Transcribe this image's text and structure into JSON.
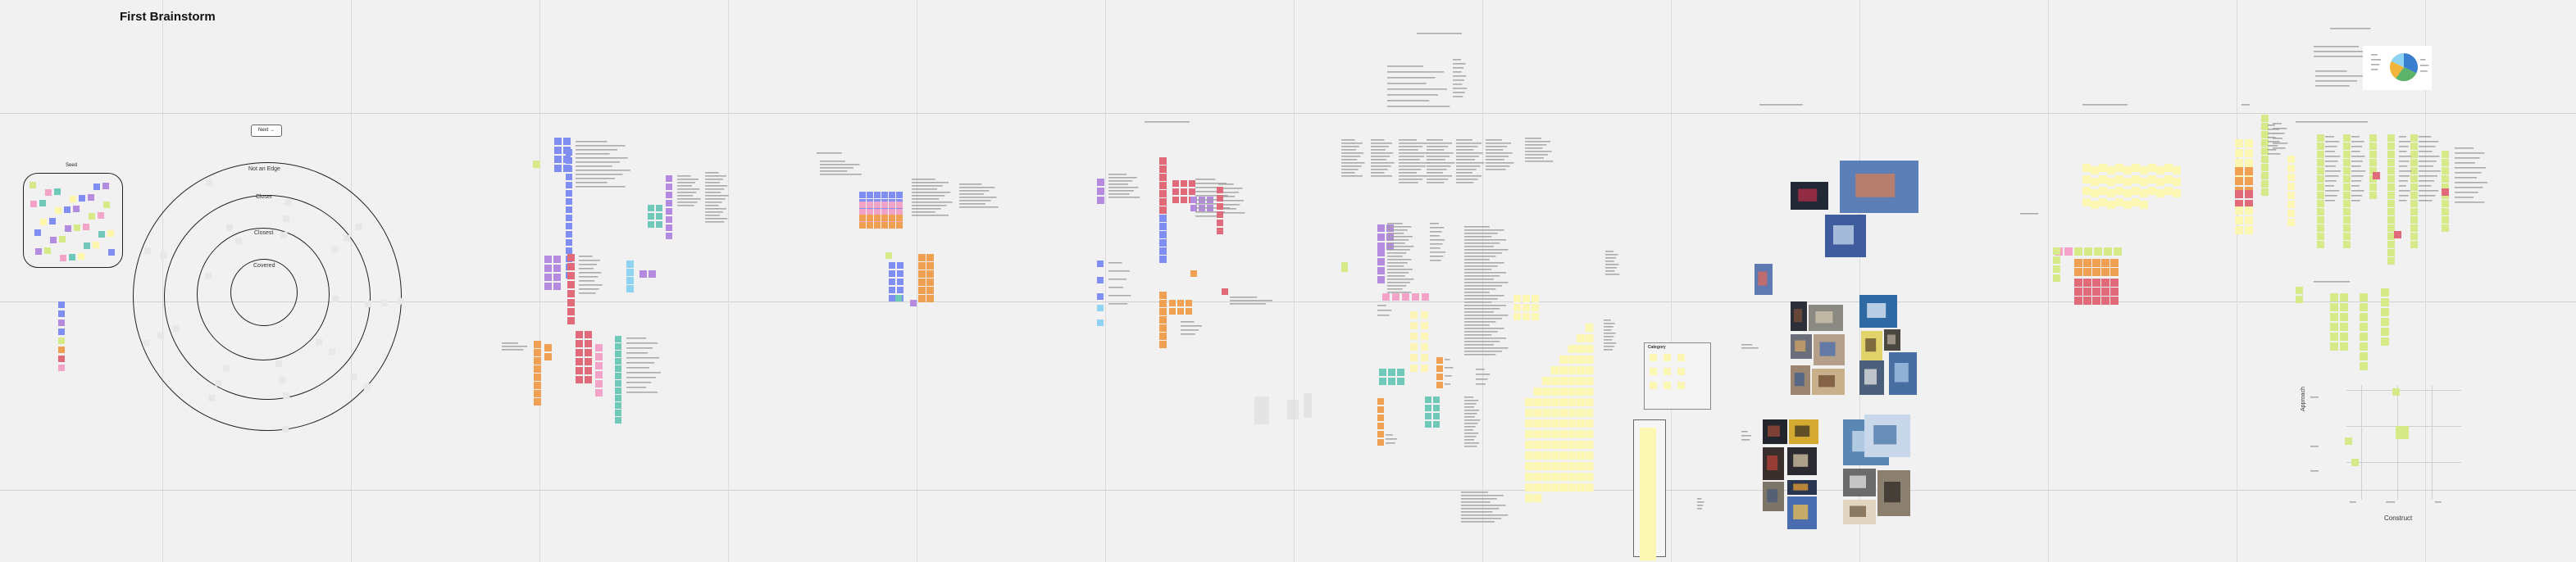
{
  "board": {
    "title": "First Brainstorm",
    "nav_pill": "Next →",
    "sticky_box_label": "Seed",
    "rings": {
      "outer": "Not an Edge",
      "second": "Closer",
      "third": "Closest",
      "inner": "Covered"
    },
    "category_frame_label": "Category",
    "axis_vertical": "Approach",
    "axis_horizontal": "Construct"
  },
  "colors": {
    "background": "#f1f1f1",
    "sticky_yellow": "#fdf6a8",
    "sticky_lime": "#d7ea8a",
    "sticky_blue": "#7f8ef0",
    "sticky_purple": "#b58be0",
    "sticky_red": "#e0697a",
    "sticky_orange": "#f0a052",
    "sticky_teal": "#6fc8b8",
    "sticky_cyan": "#8fd3f2",
    "sticky_pink": "#f3a3c8",
    "text_line_gray": "#9d9d9d"
  }
}
